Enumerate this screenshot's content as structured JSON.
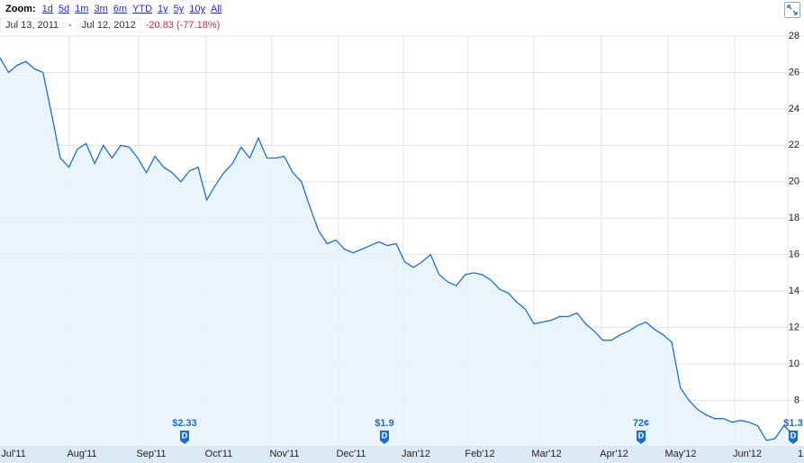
{
  "header": {
    "zoom_label": "Zoom:",
    "zoom_options": [
      "1d",
      "5d",
      "1m",
      "3m",
      "6m",
      "YTD",
      "1y",
      "5y",
      "10y",
      "All"
    ],
    "start_date": "Jul 13, 2011",
    "separator": "-",
    "end_date": "Jul 12, 2012",
    "change": "-20.83 (-77.18%)"
  },
  "chart_data": {
    "type": "line",
    "x_labels": [
      "Jul'11",
      "Aug'11",
      "Sep'11",
      "Oct'11",
      "Nov'11",
      "Dec'11",
      "Jan'12",
      "Feb'12",
      "Mar'12",
      "Apr'12",
      "May'12",
      "Jun'12",
      "1"
    ],
    "series": [
      {
        "color": "#1f6fd0",
        "values": [
          26.8,
          26,
          26.4,
          26.6,
          26.2,
          26,
          23.7,
          21.3,
          20.8,
          21.8,
          22.1,
          21,
          22,
          21.3,
          22,
          21.9,
          21.3,
          20.5,
          21.4,
          20.8,
          20.5,
          20,
          20.6,
          20.8,
          19,
          19.8,
          20.5,
          21,
          21.9,
          21.3,
          22.4,
          21.3,
          21.3,
          21.4,
          20.5,
          20,
          18.6,
          17.3,
          16.6,
          16.8,
          16.3,
          16.1,
          16.3,
          16.5,
          16.7,
          16.5,
          16.6,
          15.6,
          15.3,
          15.6,
          16,
          14.9,
          14.5,
          14.3,
          14.9,
          15,
          14.9,
          14.6,
          14.1,
          13.9,
          13.4,
          13,
          12.2,
          12.3,
          12.4,
          12.6,
          12.6,
          12.8,
          12.2,
          11.8,
          11.3,
          11.3,
          11.6,
          11.8,
          12.1,
          12.3,
          11.9,
          11.6,
          11.2,
          8.7,
          8,
          7.5,
          7.2,
          7,
          7,
          6.8,
          6.9,
          6.8,
          6.6,
          5.8,
          5.9,
          6.6,
          6.2
        ]
      }
    ],
    "ylim": [
      5.5,
      28
    ],
    "yticks": [
      8,
      10,
      12,
      14,
      16,
      18,
      20,
      22,
      24,
      26,
      28
    ],
    "grid": true,
    "dividends": [
      "$2.33",
      "$1.9",
      "72¢",
      "$1.3"
    ],
    "dividend_marker": "D"
  }
}
